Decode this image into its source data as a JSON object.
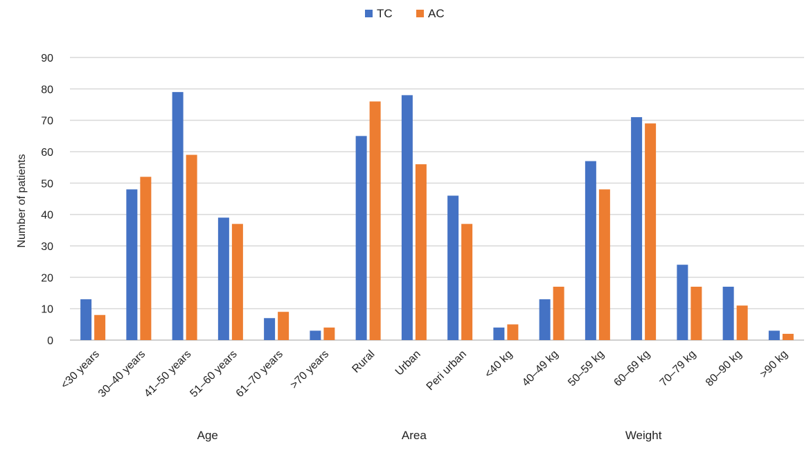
{
  "chart_data": {
    "type": "bar",
    "categories": [
      "<30 years",
      "30–40 years",
      "41–50 years",
      "51–60 years",
      "61–70 years",
      ">70 years",
      "Rural",
      "Urban",
      "Peri urban",
      "<40 kg",
      "40–49 kg",
      "50–59 kg",
      "60–69 kg",
      "70–79 kg",
      "80–90 kg",
      ">90 kg"
    ],
    "groups": [
      {
        "label": "Age",
        "start": 0,
        "end": 5
      },
      {
        "label": "Area",
        "start": 6,
        "end": 8
      },
      {
        "label": "Weight",
        "start": 9,
        "end": 15
      }
    ],
    "series": [
      {
        "name": "TC",
        "color": "#4472C4",
        "values": [
          13,
          48,
          79,
          39,
          7,
          3,
          65,
          78,
          46,
          4,
          13,
          57,
          71,
          24,
          17,
          3
        ]
      },
      {
        "name": "AC",
        "color": "#ED7D31",
        "values": [
          8,
          52,
          59,
          37,
          9,
          4,
          76,
          56,
          37,
          5,
          17,
          48,
          69,
          17,
          11,
          2
        ]
      }
    ],
    "title": "",
    "xlabel": "",
    "ylabel": "Number of patients",
    "ylim": [
      0,
      90
    ],
    "yticks": [
      0,
      10,
      20,
      30,
      40,
      50,
      60,
      70,
      80,
      90
    ],
    "grid": true,
    "legend": "top-center"
  }
}
